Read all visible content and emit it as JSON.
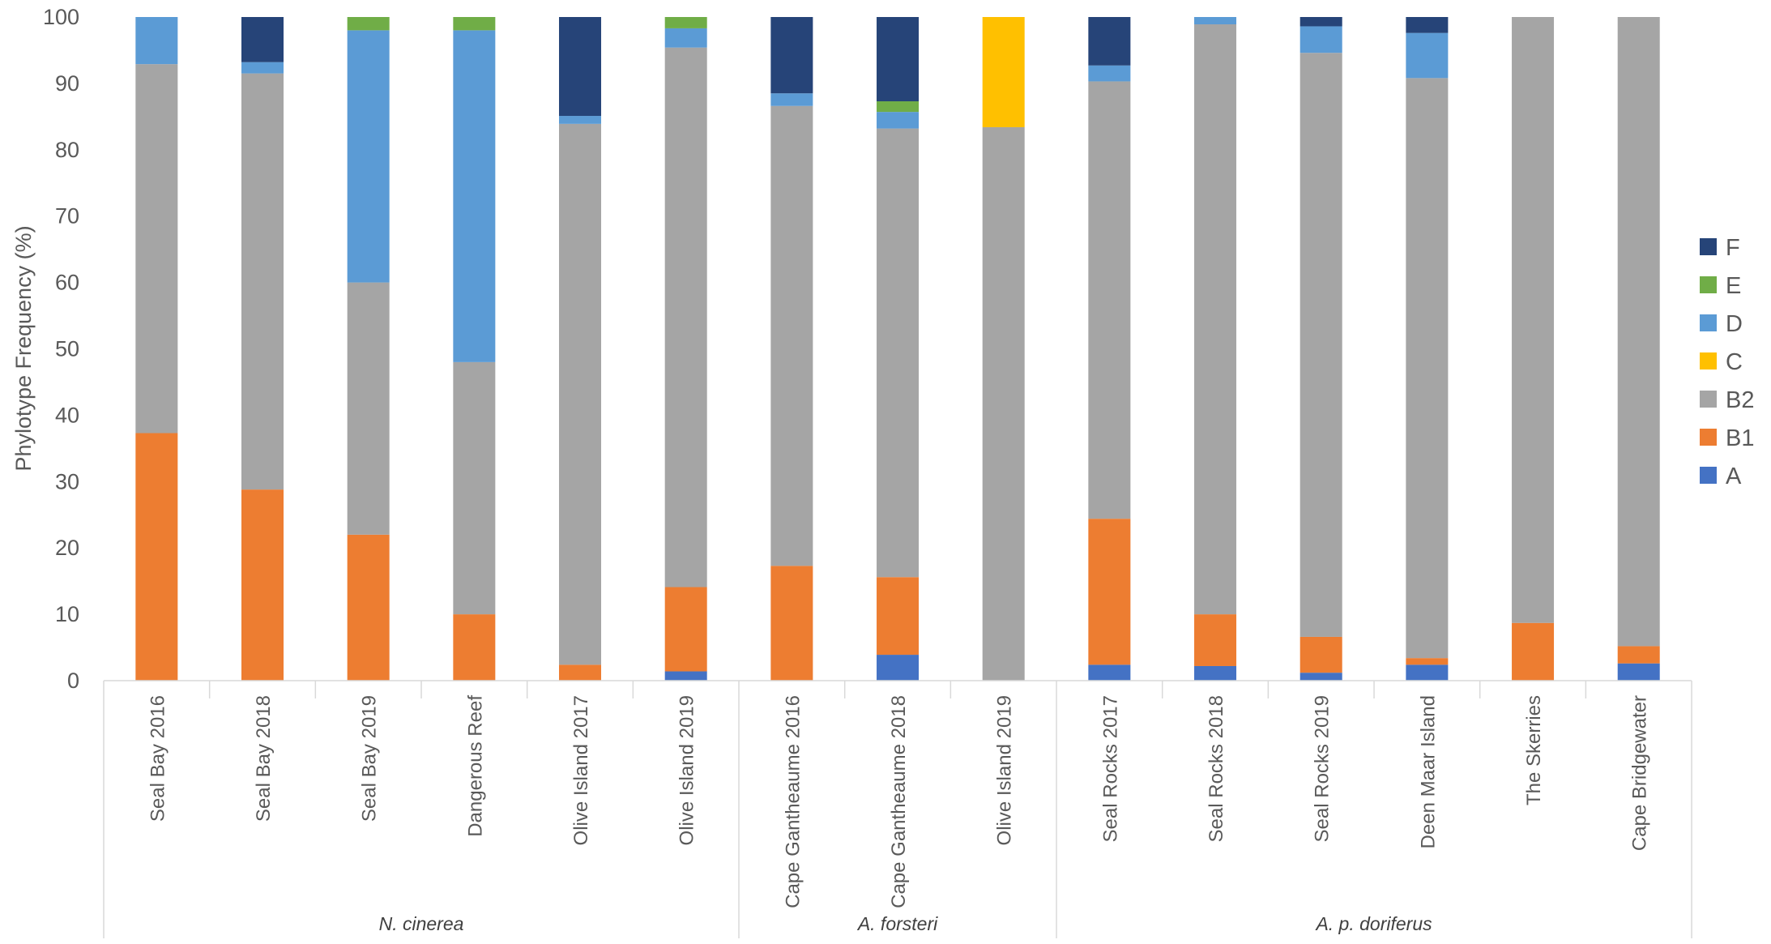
{
  "chart_data": {
    "type": "bar",
    "stacked": true,
    "title": "",
    "xlabel": "",
    "ylabel": "Phylotype Frequency (%)",
    "ylim": [
      0,
      100
    ],
    "yticks": [
      "0",
      "10",
      "20",
      "30",
      "40",
      "50",
      "60",
      "70",
      "80",
      "90",
      "100"
    ],
    "grid": false,
    "legend_position": "right",
    "categories": [
      "Seal Bay 2016",
      "Seal Bay 2018",
      "Seal Bay 2019",
      "Dangerous Reef",
      "Olive Island 2017",
      "Olive Island 2019",
      "Cape Gantheaume 2016",
      "Cape Gantheaume 2018",
      "Olive Island 2019",
      "Seal Rocks 2017",
      "Seal Rocks 2018",
      "Seal Rocks 2019",
      "Deen Maar Island",
      "The Skerries",
      "Cape Bridgewater"
    ],
    "groups": [
      {
        "name": "N. cinerea",
        "start": 0,
        "end": 5
      },
      {
        "name": "A. forsteri",
        "start": 6,
        "end": 8
      },
      {
        "name": "A. p. doriferus",
        "start": 9,
        "end": 14
      }
    ],
    "series": [
      {
        "name": "A",
        "color": "#4472C4",
        "values": [
          0,
          0,
          0,
          0,
          0,
          1.4,
          0,
          3.9,
          0,
          2.4,
          2.2,
          1.2,
          2.4,
          0,
          2.6
        ]
      },
      {
        "name": "B1",
        "color": "#ED7D31",
        "values": [
          37.3,
          28.8,
          22.0,
          10.0,
          2.4,
          12.7,
          17.3,
          11.7,
          0,
          22.0,
          7.8,
          5.4,
          1.0,
          8.7,
          2.6
        ]
      },
      {
        "name": "B2",
        "color": "#A5A5A5",
        "values": [
          55.6,
          62.7,
          38.0,
          38.0,
          81.5,
          81.3,
          69.3,
          67.6,
          83.4,
          65.9,
          88.9,
          88.0,
          87.4,
          91.3,
          94.8
        ]
      },
      {
        "name": "C",
        "color": "#FFC000",
        "values": [
          0,
          0,
          0,
          0,
          0,
          0,
          0,
          0,
          16.6,
          0,
          0,
          0,
          0,
          0,
          0
        ]
      },
      {
        "name": "D",
        "color": "#5B9BD5",
        "values": [
          7.1,
          1.7,
          38.0,
          50.0,
          1.2,
          2.9,
          1.9,
          2.5,
          0,
          2.4,
          1.1,
          4.0,
          6.8,
          0,
          0
        ]
      },
      {
        "name": "E",
        "color": "#70AD47",
        "values": [
          0,
          0,
          2.0,
          2.0,
          0,
          1.7,
          0,
          1.6,
          0,
          0,
          0,
          0,
          0,
          0,
          0
        ]
      },
      {
        "name": "F",
        "color": "#264478",
        "values": [
          0,
          6.8,
          0,
          0,
          14.9,
          0,
          11.5,
          12.7,
          0,
          7.3,
          0,
          1.4,
          2.4,
          0,
          0
        ]
      }
    ]
  }
}
